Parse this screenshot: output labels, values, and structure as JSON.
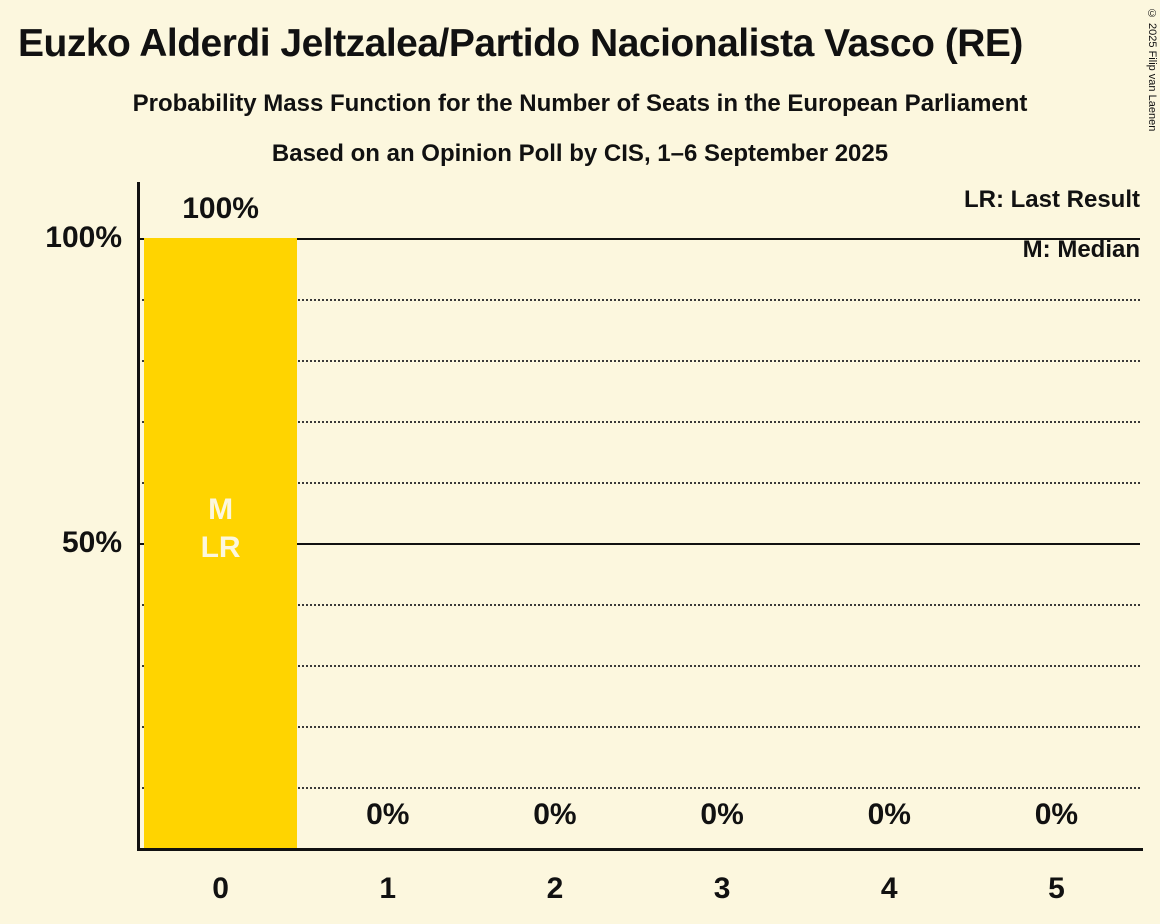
{
  "title": "Euzko Alderdi Jeltzalea/Partido Nacionalista Vasco (RE)",
  "subtitle": "Probability Mass Function for the Number of Seats in the European Parliament",
  "poll_note": "Based on an Opinion Poll by CIS, 1–6 September 2025",
  "copyright": "© 2025 Filip van Laenen",
  "legend": {
    "last_result": "LR: Last Result",
    "median": "M: Median"
  },
  "colors": {
    "background": "#FCF7DE",
    "bar": "#FFD400",
    "text": "#111111",
    "in_bar_text": "#FCF7DE"
  },
  "chart_data": {
    "type": "bar",
    "title": "Euzko Alderdi Jeltzalea/Partido Nacionalista Vasco (RE)",
    "xlabel": "",
    "ylabel": "",
    "categories": [
      "0",
      "1",
      "2",
      "3",
      "4",
      "5"
    ],
    "values": [
      100,
      0,
      0,
      0,
      0,
      0
    ],
    "bar_labels": [
      "100%",
      "0%",
      "0%",
      "0%",
      "0%",
      "0%"
    ],
    "y_ticks": [
      {
        "label": "100%",
        "value": 100
      },
      {
        "label": "50%",
        "value": 50
      }
    ],
    "ylim": [
      0,
      100
    ],
    "grid": {
      "solid": [
        100,
        50
      ],
      "dotted": [
        90,
        80,
        70,
        60,
        40,
        30,
        20,
        10
      ]
    },
    "bar_color": "#FFD400",
    "median": 0,
    "last_result": 0,
    "annotations": [
      {
        "bar": 0,
        "lines": [
          "M",
          "LR"
        ]
      }
    ],
    "legend_position": "top-right"
  }
}
